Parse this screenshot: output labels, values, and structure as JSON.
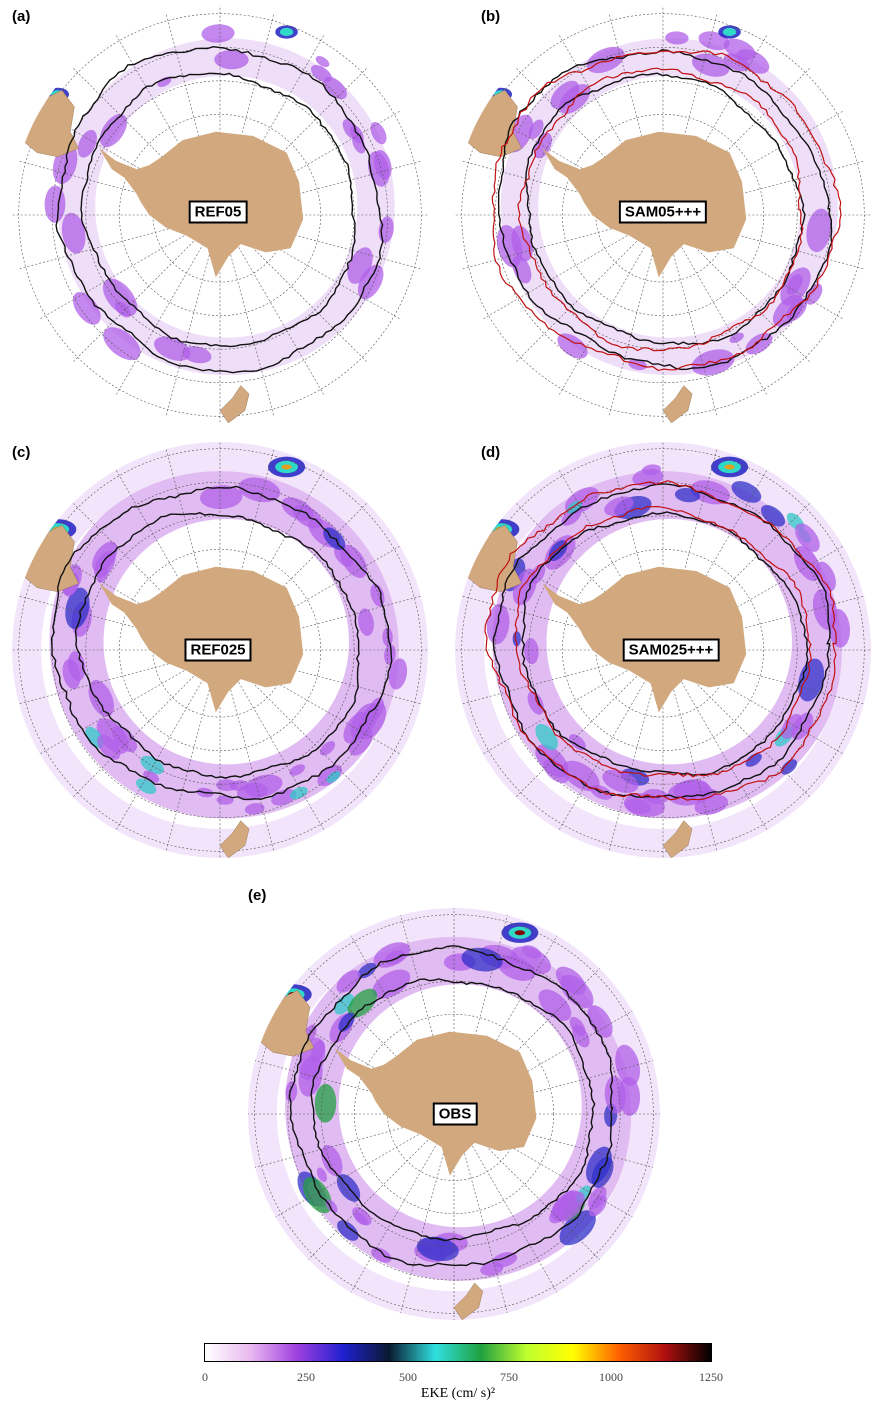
{
  "panels": [
    {
      "id": "a",
      "label": "(a)",
      "map_label": "REF05",
      "detail": "low",
      "red_contours": false
    },
    {
      "id": "b",
      "label": "(b)",
      "map_label": "SAM05+++",
      "detail": "low",
      "red_contours": true
    },
    {
      "id": "c",
      "label": "(c)",
      "map_label": "REF025",
      "detail": "high",
      "red_contours": false
    },
    {
      "id": "d",
      "label": "(d)",
      "map_label": "SAM025+++",
      "detail": "high",
      "red_contours": true
    },
    {
      "id": "e",
      "label": "(e)",
      "map_label": "OBS",
      "detail": "obs",
      "red_contours": false
    }
  ],
  "colorbar": {
    "title": "EKE (cm/ s)²",
    "range": [
      0,
      1250
    ],
    "tick_labels": [
      "0",
      "250",
      "500",
      "750",
      "1000",
      "1250"
    ],
    "stops": [
      "#ffffff",
      "#e8b8f0",
      "#a040e0",
      "#2020d0",
      "#0a1a30",
      "#30e0e0",
      "#20a040",
      "#c0ff30",
      "#ffff00",
      "#ff6000",
      "#b01010",
      "#000000"
    ]
  },
  "colors": {
    "land": "#d2a97e",
    "contour_model": "#111111",
    "contour_red": "#c01010",
    "graticule": "#555555"
  }
}
